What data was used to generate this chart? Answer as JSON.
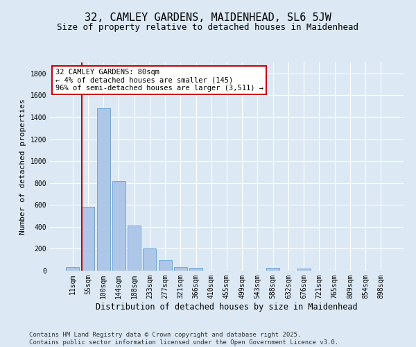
{
  "title_line1": "32, CAMLEY GARDENS, MAIDENHEAD, SL6 5JW",
  "title_line2": "Size of property relative to detached houses in Maidenhead",
  "xlabel": "Distribution of detached houses by size in Maidenhead",
  "ylabel": "Number of detached properties",
  "categories": [
    "11sqm",
    "55sqm",
    "100sqm",
    "144sqm",
    "188sqm",
    "233sqm",
    "277sqm",
    "321sqm",
    "366sqm",
    "410sqm",
    "455sqm",
    "499sqm",
    "543sqm",
    "588sqm",
    "632sqm",
    "676sqm",
    "721sqm",
    "765sqm",
    "809sqm",
    "854sqm",
    "898sqm"
  ],
  "values": [
    30,
    580,
    1480,
    820,
    410,
    200,
    95,
    30,
    25,
    0,
    0,
    0,
    0,
    25,
    0,
    20,
    0,
    0,
    0,
    0,
    0
  ],
  "bar_color": "#aec6e8",
  "bar_edge_color": "#6fa8d6",
  "vline_color": "#cc0000",
  "annotation_text": "32 CAMLEY GARDENS: 80sqm\n← 4% of detached houses are smaller (145)\n96% of semi-detached houses are larger (3,511) →",
  "annotation_box_color": "#ffffff",
  "annotation_box_edgecolor": "#cc0000",
  "ylim": [
    0,
    1900
  ],
  "yticks": [
    0,
    200,
    400,
    600,
    800,
    1000,
    1200,
    1400,
    1600,
    1800
  ],
  "bg_color": "#dce9f5",
  "plot_bg_color": "#dce9f5",
  "footer_text": "Contains HM Land Registry data © Crown copyright and database right 2025.\nContains public sector information licensed under the Open Government Licence v3.0.",
  "title_fontsize": 11,
  "subtitle_fontsize": 9,
  "xlabel_fontsize": 8.5,
  "ylabel_fontsize": 8,
  "tick_fontsize": 7,
  "annotation_fontsize": 7.5,
  "footer_fontsize": 6.5
}
